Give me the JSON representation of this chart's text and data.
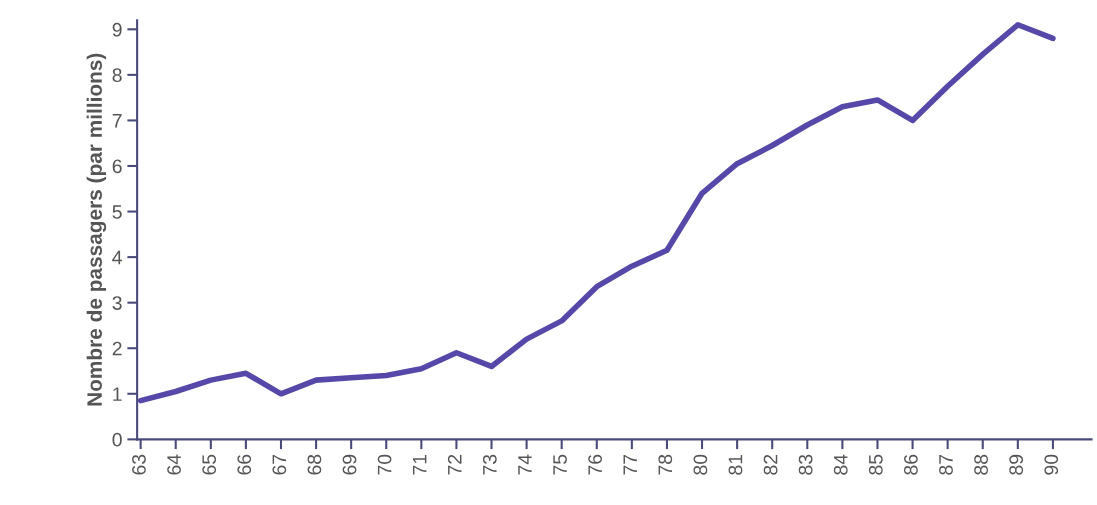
{
  "chart_data": {
    "type": "line",
    "ylabel": "Nombre de passagers (par millions)",
    "categories": [
      "63",
      "64",
      "65",
      "66",
      "67",
      "68",
      "69",
      "70",
      "71",
      "72",
      "73",
      "74",
      "75",
      "76",
      "77",
      "78",
      "80",
      "81",
      "82",
      "83",
      "84",
      "85",
      "86",
      "87",
      "88",
      "89",
      "90"
    ],
    "series": [
      {
        "color": "#5548a8",
        "values": [
          0.85,
          1.05,
          1.3,
          1.45,
          1.0,
          1.3,
          1.35,
          1.4,
          1.55,
          1.9,
          1.6,
          2.2,
          2.6,
          3.35,
          3.8,
          4.15,
          5.4,
          6.05,
          6.45,
          6.9,
          7.3,
          7.45,
          7.0,
          7.75,
          8.45,
          9.1,
          8.8
        ]
      }
    ],
    "ylim": [
      0,
      9.2
    ],
    "yticks": [
      0,
      1,
      2,
      3,
      4,
      5,
      6,
      7,
      8,
      9
    ],
    "grid": false,
    "marker": "none",
    "line_style": "solid"
  }
}
